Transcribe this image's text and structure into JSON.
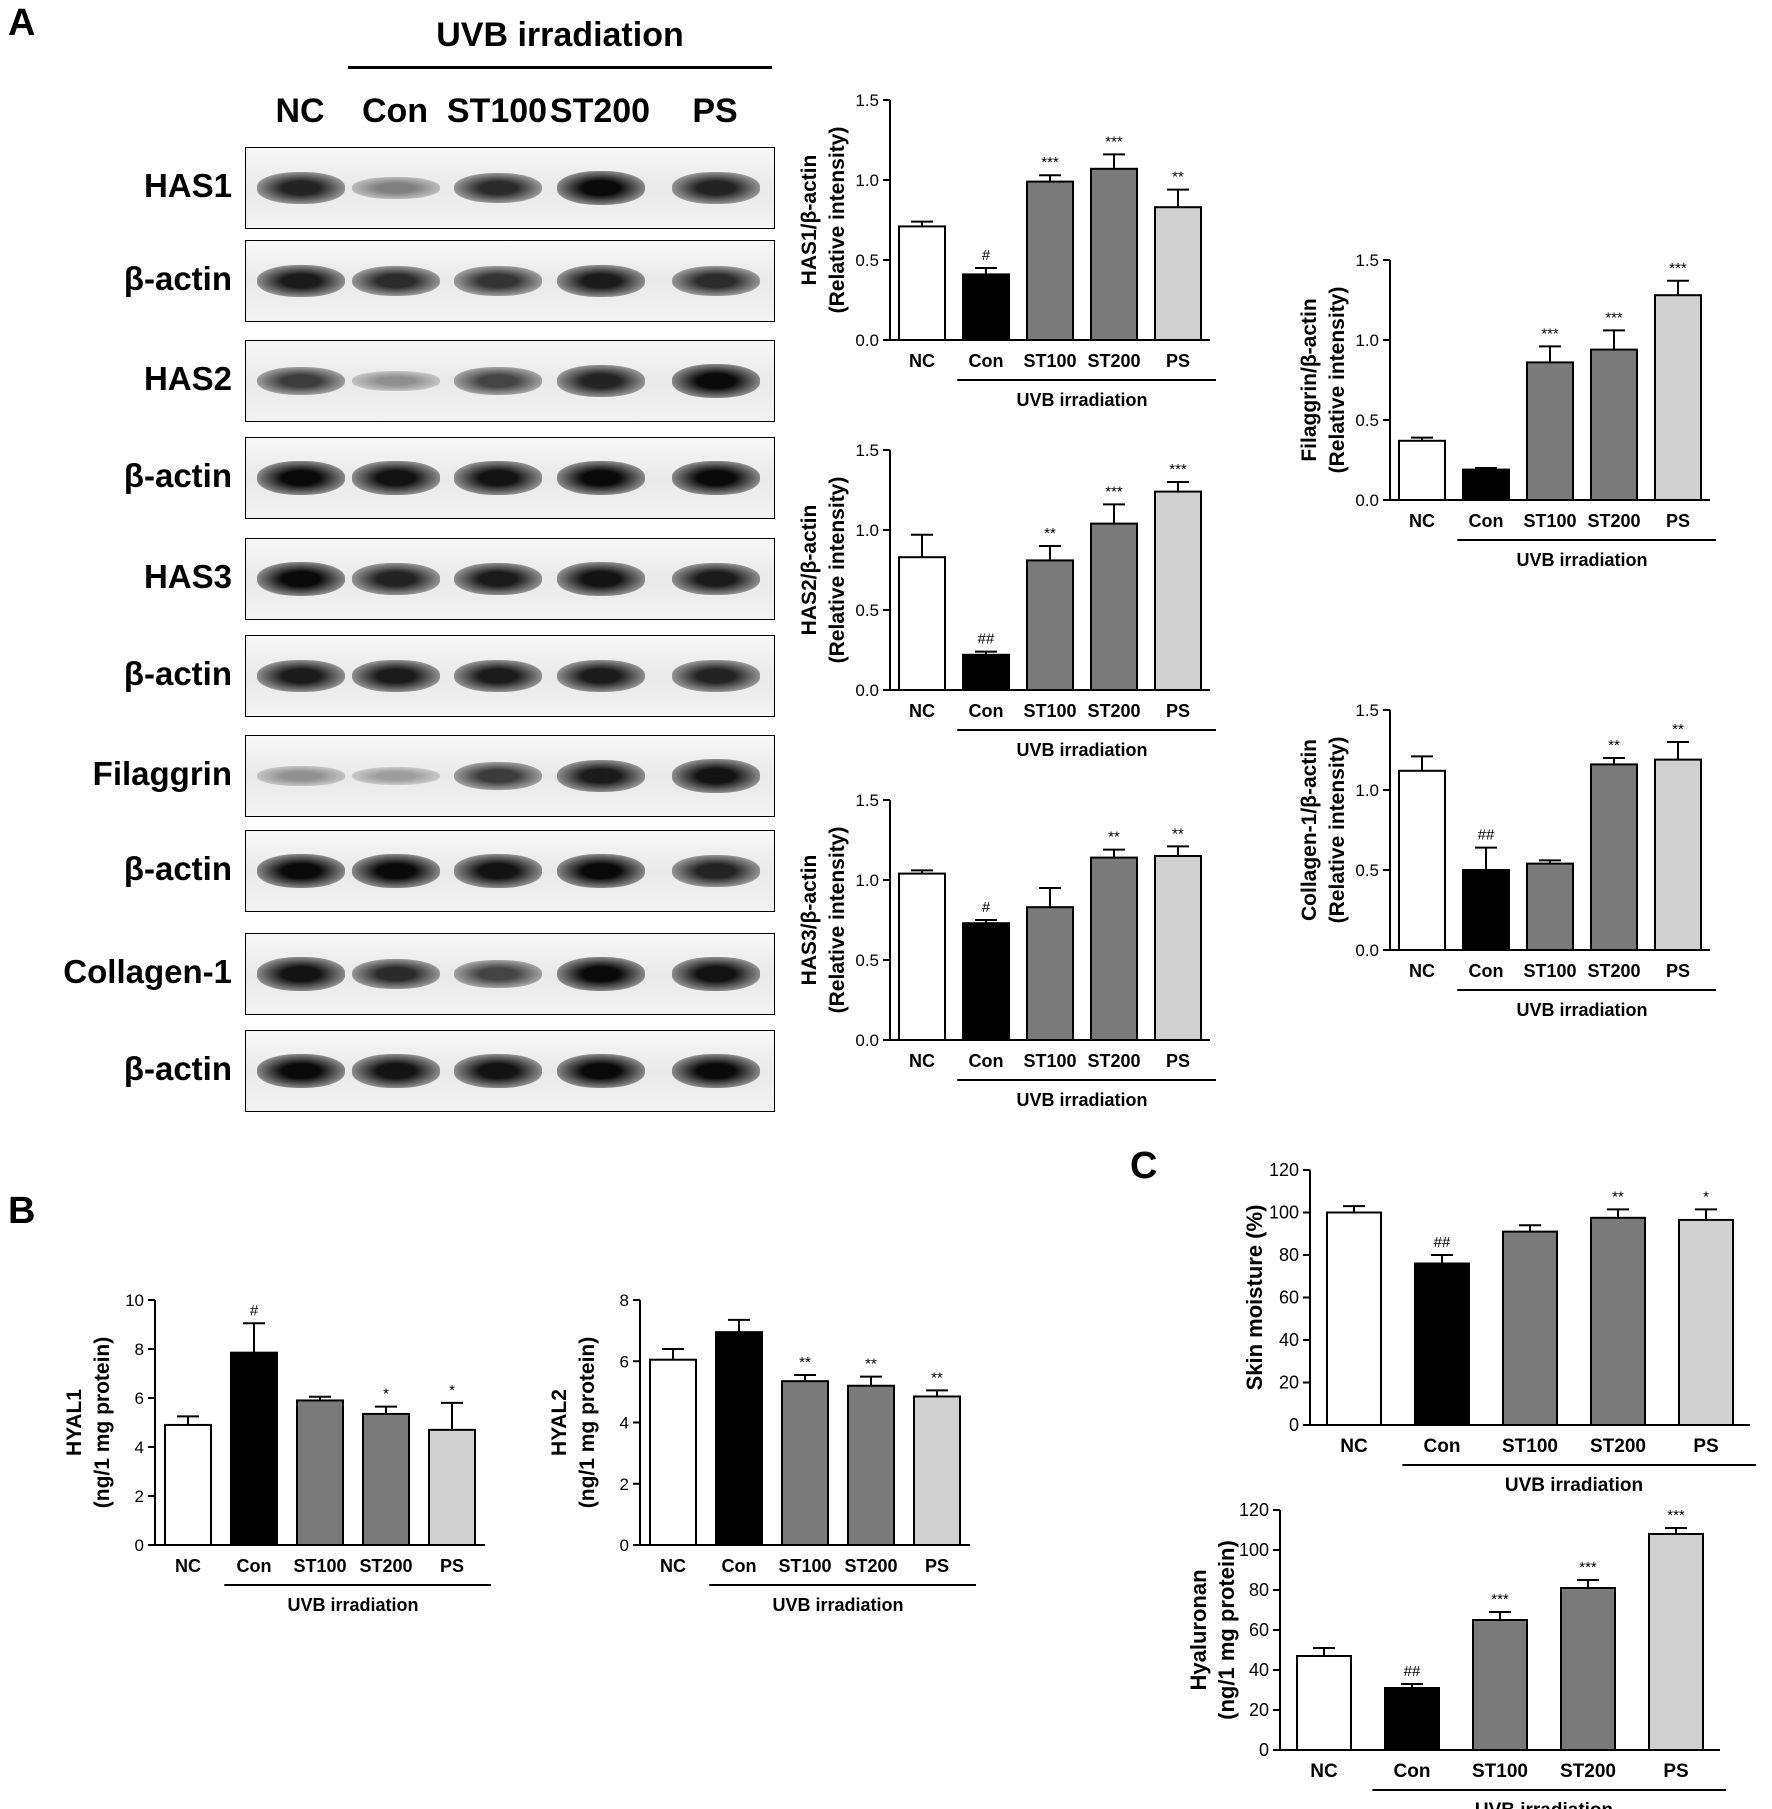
{
  "panels": {
    "a": "A",
    "b": "B",
    "c": "C"
  },
  "blot": {
    "header": "UVB irradiation",
    "lanes": [
      "NC",
      "Con",
      "ST100",
      "ST200",
      "PS"
    ],
    "rows": [
      {
        "label": "HAS1",
        "intensity": [
          0.85,
          0.3,
          0.8,
          1.0,
          0.85
        ]
      },
      {
        "label": "β-actin",
        "intensity": [
          0.9,
          0.8,
          0.75,
          0.9,
          0.8
        ]
      },
      {
        "label": "HAS2",
        "intensity": [
          0.7,
          0.2,
          0.65,
          0.85,
          1.0
        ]
      },
      {
        "label": "β-actin",
        "intensity": [
          1.0,
          0.95,
          0.95,
          1.0,
          1.0
        ]
      },
      {
        "label": "HAS3",
        "intensity": [
          1.0,
          0.85,
          0.9,
          0.95,
          0.9
        ]
      },
      {
        "label": "β-actin",
        "intensity": [
          0.9,
          0.9,
          0.9,
          0.9,
          0.85
        ]
      },
      {
        "label": "Filaggrin",
        "intensity": [
          0.2,
          0.12,
          0.7,
          0.9,
          0.95
        ]
      },
      {
        "label": "β-actin",
        "intensity": [
          1.0,
          1.0,
          0.95,
          1.0,
          0.85
        ]
      },
      {
        "label": "Collagen-1",
        "intensity": [
          0.95,
          0.8,
          0.65,
          1.0,
          0.95
        ]
      },
      {
        "label": "β-actin",
        "intensity": [
          1.0,
          0.95,
          0.95,
          1.0,
          1.0
        ]
      }
    ]
  },
  "chart_data": [
    {
      "id": "has1",
      "type": "bar",
      "categories": [
        "NC",
        "Con",
        "ST100",
        "ST200",
        "PS"
      ],
      "values": [
        0.71,
        0.41,
        0.99,
        1.07,
        0.83
      ],
      "errors": [
        0.03,
        0.04,
        0.04,
        0.09,
        0.11
      ],
      "annotations": [
        "",
        "#",
        "***",
        "***",
        "**"
      ],
      "ylabel": [
        "HAS1/β-actin",
        "(Relative intensity)"
      ],
      "group_label": "UVB irradiation",
      "ylim": [
        0,
        1.5
      ],
      "yticks": [
        "0.0",
        "0.5",
        "1.0",
        "1.5"
      ],
      "ytick_values": [
        0,
        0.5,
        1.0,
        1.5
      ]
    },
    {
      "id": "has2",
      "type": "bar",
      "categories": [
        "NC",
        "Con",
        "ST100",
        "ST200",
        "PS"
      ],
      "values": [
        0.83,
        0.22,
        0.81,
        1.04,
        1.24
      ],
      "errors": [
        0.14,
        0.02,
        0.09,
        0.12,
        0.06
      ],
      "annotations": [
        "",
        "##",
        "**",
        "***",
        "***"
      ],
      "ylabel": [
        "HAS2/β-actin",
        "(Relative intensity)"
      ],
      "group_label": "UVB irradiation",
      "ylim": [
        0,
        1.5
      ],
      "yticks": [
        "0.0",
        "0.5",
        "1.0",
        "1.5"
      ],
      "ytick_values": [
        0,
        0.5,
        1.0,
        1.5
      ]
    },
    {
      "id": "has3",
      "type": "bar",
      "categories": [
        "NC",
        "Con",
        "ST100",
        "ST200",
        "PS"
      ],
      "values": [
        1.04,
        0.73,
        0.83,
        1.14,
        1.15
      ],
      "errors": [
        0.02,
        0.02,
        0.12,
        0.05,
        0.06
      ],
      "annotations": [
        "",
        "#",
        "",
        "**",
        "**"
      ],
      "ylabel": [
        "HAS3/β-actin",
        "(Relative intensity)"
      ],
      "group_label": "UVB irradiation",
      "ylim": [
        0,
        1.5
      ],
      "yticks": [
        "0.0",
        "0.5",
        "1.0",
        "1.5"
      ],
      "ytick_values": [
        0,
        0.5,
        1.0,
        1.5
      ]
    },
    {
      "id": "filaggrin",
      "type": "bar",
      "categories": [
        "NC",
        "Con",
        "ST100",
        "ST200",
        "PS"
      ],
      "values": [
        0.37,
        0.19,
        0.86,
        0.94,
        1.28
      ],
      "errors": [
        0.02,
        0.01,
        0.1,
        0.12,
        0.09
      ],
      "annotations": [
        "",
        "",
        "***",
        "***",
        "***"
      ],
      "ylabel": [
        "Filaggrin/β-actin",
        "(Relative intensity)"
      ],
      "group_label": "UVB irradiation",
      "ylim": [
        0,
        1.5
      ],
      "yticks": [
        "0.0",
        "0.5",
        "1.0",
        "1.5"
      ],
      "ytick_values": [
        0,
        0.5,
        1.0,
        1.5
      ]
    },
    {
      "id": "collagen1",
      "type": "bar",
      "categories": [
        "NC",
        "Con",
        "ST100",
        "ST200",
        "PS"
      ],
      "values": [
        1.12,
        0.5,
        0.54,
        1.16,
        1.19
      ],
      "errors": [
        0.09,
        0.14,
        0.02,
        0.04,
        0.11
      ],
      "annotations": [
        "",
        "##",
        "",
        "**",
        "**"
      ],
      "ylabel": [
        "Collagen-1/β-actin",
        "(Relative intensity)"
      ],
      "group_label": "UVB irradiation",
      "ylim": [
        0,
        1.5
      ],
      "yticks": [
        "0.0",
        "0.5",
        "1.0",
        "1.5"
      ],
      "ytick_values": [
        0,
        0.5,
        1.0,
        1.5
      ]
    },
    {
      "id": "hyal1",
      "type": "bar",
      "categories": [
        "NC",
        "Con",
        "ST100",
        "ST200",
        "PS"
      ],
      "values": [
        4.9,
        7.85,
        5.9,
        5.35,
        4.7
      ],
      "errors": [
        0.35,
        1.2,
        0.15,
        0.3,
        1.1
      ],
      "annotations": [
        "",
        "#",
        "",
        "*",
        "*"
      ],
      "ylabel": [
        "HYAL1",
        "(ng/1 mg protein)"
      ],
      "group_label": "UVB irradiation",
      "ylim": [
        0,
        10
      ],
      "yticks": [
        "0",
        "2",
        "4",
        "6",
        "8",
        "10"
      ],
      "ytick_values": [
        0,
        2,
        4,
        6,
        8,
        10
      ]
    },
    {
      "id": "hyal2",
      "type": "bar",
      "categories": [
        "NC",
        "Con",
        "ST100",
        "ST200",
        "PS"
      ],
      "values": [
        6.05,
        6.95,
        5.35,
        5.2,
        4.85
      ],
      "errors": [
        0.35,
        0.4,
        0.2,
        0.3,
        0.2
      ],
      "annotations": [
        "",
        "",
        "**",
        "**",
        "**"
      ],
      "ylabel": [
        "HYAL2",
        "(ng/1 mg protein)"
      ],
      "group_label": "UVB irradiation",
      "ylim": [
        0,
        8
      ],
      "yticks": [
        "0",
        "2",
        "4",
        "6",
        "8"
      ],
      "ytick_values": [
        0,
        2,
        4,
        6,
        8
      ]
    },
    {
      "id": "skin_moisture",
      "type": "bar",
      "categories": [
        "NC",
        "Con",
        "ST100",
        "ST200",
        "PS"
      ],
      "values": [
        100,
        76,
        91,
        97.5,
        96.5
      ],
      "errors": [
        3,
        4,
        3,
        4,
        5
      ],
      "annotations": [
        "",
        "##",
        "",
        "**",
        "*"
      ],
      "ylabel": [
        "Skin moisture (%)"
      ],
      "group_label": "UVB irradiation",
      "ylim": [
        0,
        120
      ],
      "yticks": [
        "0",
        "20",
        "40",
        "60",
        "80",
        "100",
        "120"
      ],
      "ytick_values": [
        0,
        20,
        40,
        60,
        80,
        100,
        120
      ]
    },
    {
      "id": "hyaluronan",
      "type": "bar",
      "categories": [
        "NC",
        "Con",
        "ST100",
        "ST200",
        "PS"
      ],
      "values": [
        47,
        31,
        65,
        81,
        108
      ],
      "errors": [
        4,
        2,
        4,
        4,
        3
      ],
      "annotations": [
        "",
        "##",
        "***",
        "***",
        "***"
      ],
      "ylabel": [
        "Hyaluronan",
        "(ng/1 mg protein)"
      ],
      "group_label": "UVB irradiation",
      "ylim": [
        0,
        120
      ],
      "yticks": [
        "0",
        "20",
        "40",
        "60",
        "80",
        "100",
        "120"
      ],
      "ytick_values": [
        0,
        20,
        40,
        60,
        80,
        100,
        120
      ]
    }
  ],
  "colors": {
    "NC": "#ffffff",
    "Con": "#000000",
    "ST100": "#7a7a7a",
    "ST200": "#7a7a7a",
    "PS": "#d0d0d0"
  }
}
